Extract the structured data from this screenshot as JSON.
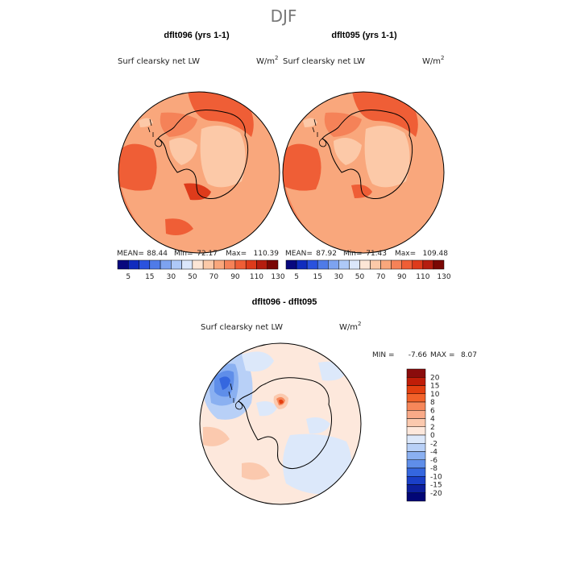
{
  "chart_data": [
    {
      "type": "heatmap",
      "projection": "south-polar-stereographic",
      "title": "dflt096 (yrs 1-1)",
      "field": "Surf clearsky net LW",
      "units": "W/m",
      "units_exp": "2",
      "stats": {
        "mean_label": "MEAN=",
        "mean": "88.44",
        "min_label": "Min=",
        "min": "72.17",
        "max_label": "Max=",
        "max": "110.39"
      },
      "colorbar_ticks": [
        "5",
        "15",
        "30",
        "50",
        "70",
        "90",
        "110",
        "130"
      ],
      "colorbar_colors": [
        "#08087e",
        "#102cbe",
        "#2a52de",
        "#4f7be8",
        "#7da3f0",
        "#aec9f7",
        "#dbe7fb",
        "#fde6d6",
        "#fcc9a8",
        "#f9a77c",
        "#f58258",
        "#ef5e36",
        "#de3b1b",
        "#b51d0f",
        "#7a0704"
      ]
    },
    {
      "type": "heatmap",
      "projection": "south-polar-stereographic",
      "title": "dflt095 (yrs 1-1)",
      "field": "Surf clearsky net LW",
      "units": "W/m",
      "units_exp": "2",
      "stats": {
        "mean_label": "MEAN=",
        "mean": "87.92",
        "min_label": "Min=",
        "min": "71.43",
        "max_label": "Max=",
        "max": "109.48"
      },
      "colorbar_ticks": [
        "5",
        "15",
        "30",
        "50",
        "70",
        "90",
        "110",
        "130"
      ],
      "colorbar_colors": [
        "#08087e",
        "#102cbe",
        "#2a52de",
        "#4f7be8",
        "#7da3f0",
        "#aec9f7",
        "#dbe7fb",
        "#fde6d6",
        "#fcc9a8",
        "#f9a77c",
        "#f58258",
        "#ef5e36",
        "#de3b1b",
        "#b51d0f",
        "#7a0704"
      ]
    },
    {
      "type": "heatmap",
      "projection": "south-polar-stereographic",
      "title": "dflt096 - dflt095",
      "field": "Surf clearsky net LW",
      "units": "W/m",
      "units_exp": "2",
      "stats": {
        "min_label": "MIN =",
        "min": "-7.66",
        "max_label": "MAX =",
        "max": "8.07"
      },
      "colorbar_ticks": [
        "20",
        "15",
        "10",
        "8",
        "6",
        "4",
        "2",
        "0",
        "-2",
        "-4",
        "-6",
        "-8",
        "-10",
        "-15",
        "-20"
      ],
      "colorbar_colors": [
        "#8a0c0c",
        "#c01d08",
        "#e33f10",
        "#f2622a",
        "#f6875a",
        "#f9aa88",
        "#fbc9ae",
        "#fde8dc",
        "#dce8fa",
        "#b8d0f7",
        "#8ab0f1",
        "#5f8ee9",
        "#3567df",
        "#1a3fc7",
        "#0d1f9c",
        "#020676"
      ]
    }
  ],
  "header": {
    "season": "DJF"
  }
}
